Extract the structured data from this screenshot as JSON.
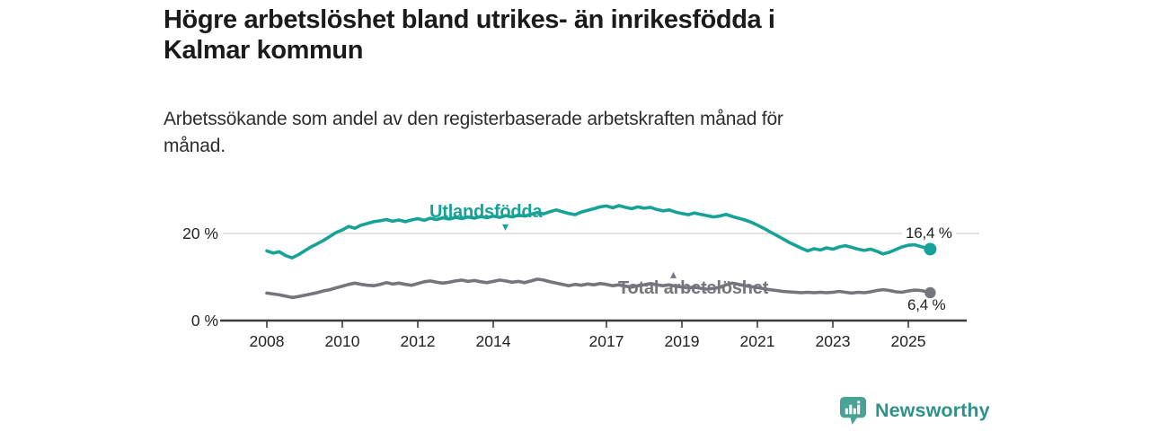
{
  "header": {
    "title": "Högre arbetslöshet bland utrikes- än inrikesfödda i Kalmar kommun",
    "title_line1": "Högre arbetslöshet bland utrikes- än inrikesfödda i",
    "title_line2": "Kalmar kommun",
    "subtitle": "Arbetssökande som andel av den registerbaserade arbetskraften månad för månad.",
    "subtitle_line1": "Arbetssökande som andel av den registerbaserade arbetskraften månad för",
    "subtitle_line2": "månad."
  },
  "colors": {
    "teal": "#17a298",
    "gray": "#75757d",
    "axis": "#3b3b3b",
    "grid": "#dadada",
    "tick_text": "#222222",
    "logo_bubble": "#4aa295",
    "logo_bars": "#ffffff",
    "logo_text": "#2f9289"
  },
  "chart_data": {
    "type": "line",
    "title": "Högre arbetslöshet bland utrikes- än inrikesfödda i Kalmar kommun",
    "subtitle": "Arbetssökande som andel av den registerbaserade arbetskraften månad för månad.",
    "unit": "%",
    "xlim": [
      2006.8,
      2026.5
    ],
    "ylim": [
      0,
      30
    ],
    "grid": "y-20-only",
    "legend_position": "inline-labels",
    "x_ticks": [
      {
        "year": 2008,
        "label": "2008"
      },
      {
        "year": 2010,
        "label": "2010"
      },
      {
        "year": 2012,
        "label": "2012"
      },
      {
        "year": 2014,
        "label": "2014"
      },
      {
        "year": 2017,
        "label": "2017"
      },
      {
        "year": 2019,
        "label": "2019"
      },
      {
        "year": 2021,
        "label": "2021"
      },
      {
        "year": 2023,
        "label": "2023"
      },
      {
        "year": 2025,
        "label": "2025"
      }
    ],
    "y_ticks": [
      {
        "value": 20,
        "label": "20 %"
      },
      {
        "value": 0,
        "label": "0 %"
      }
    ],
    "series": [
      {
        "name": "Utlandsfödda",
        "color": "#17a298",
        "end_label": "16,4 %",
        "end_value": 16.4,
        "points": [
          [
            2008.0,
            16.0
          ],
          [
            2008.17,
            15.5
          ],
          [
            2008.33,
            15.8
          ],
          [
            2008.5,
            14.9
          ],
          [
            2008.67,
            14.4
          ],
          [
            2008.83,
            15.1
          ],
          [
            2009.0,
            16.0
          ],
          [
            2009.17,
            16.9
          ],
          [
            2009.33,
            17.6
          ],
          [
            2009.5,
            18.4
          ],
          [
            2009.67,
            19.3
          ],
          [
            2009.83,
            20.2
          ],
          [
            2010.0,
            20.8
          ],
          [
            2010.17,
            21.6
          ],
          [
            2010.33,
            21.2
          ],
          [
            2010.5,
            21.9
          ],
          [
            2010.67,
            22.3
          ],
          [
            2010.83,
            22.7
          ],
          [
            2011.0,
            22.9
          ],
          [
            2011.17,
            23.2
          ],
          [
            2011.33,
            22.8
          ],
          [
            2011.5,
            23.1
          ],
          [
            2011.67,
            22.7
          ],
          [
            2011.83,
            23.1
          ],
          [
            2012.0,
            23.4
          ],
          [
            2012.17,
            23.0
          ],
          [
            2012.33,
            23.5
          ],
          [
            2012.5,
            23.2
          ],
          [
            2012.67,
            23.6
          ],
          [
            2012.83,
            23.3
          ],
          [
            2013.0,
            23.7
          ],
          [
            2013.17,
            23.4
          ],
          [
            2013.33,
            23.8
          ],
          [
            2013.5,
            23.5
          ],
          [
            2013.67,
            23.9
          ],
          [
            2013.83,
            23.6
          ],
          [
            2014.0,
            24.0
          ],
          [
            2014.17,
            23.7
          ],
          [
            2014.33,
            24.1
          ],
          [
            2014.5,
            23.8
          ],
          [
            2014.67,
            24.2
          ],
          [
            2014.83,
            24.0
          ],
          [
            2015.0,
            24.4
          ],
          [
            2015.17,
            24.8
          ],
          [
            2015.33,
            24.5
          ],
          [
            2015.5,
            25.0
          ],
          [
            2015.67,
            25.4
          ],
          [
            2015.83,
            25.0
          ],
          [
            2016.0,
            24.6
          ],
          [
            2016.17,
            24.3
          ],
          [
            2016.33,
            24.9
          ],
          [
            2016.5,
            25.3
          ],
          [
            2016.67,
            25.7
          ],
          [
            2016.83,
            26.1
          ],
          [
            2017.0,
            26.3
          ],
          [
            2017.17,
            25.9
          ],
          [
            2017.33,
            26.4
          ],
          [
            2017.5,
            26.0
          ],
          [
            2017.67,
            25.7
          ],
          [
            2017.83,
            26.1
          ],
          [
            2018.0,
            25.8
          ],
          [
            2018.17,
            26.0
          ],
          [
            2018.33,
            25.5
          ],
          [
            2018.5,
            25.2
          ],
          [
            2018.67,
            25.4
          ],
          [
            2018.83,
            24.9
          ],
          [
            2019.0,
            24.6
          ],
          [
            2019.17,
            24.3
          ],
          [
            2019.33,
            24.7
          ],
          [
            2019.5,
            24.4
          ],
          [
            2019.67,
            24.1
          ],
          [
            2019.83,
            23.8
          ],
          [
            2020.0,
            24.0
          ],
          [
            2020.17,
            24.4
          ],
          [
            2020.33,
            23.9
          ],
          [
            2020.5,
            23.5
          ],
          [
            2020.67,
            23.1
          ],
          [
            2020.83,
            22.6
          ],
          [
            2021.0,
            21.9
          ],
          [
            2021.17,
            21.2
          ],
          [
            2021.33,
            20.4
          ],
          [
            2021.5,
            19.6
          ],
          [
            2021.67,
            18.8
          ],
          [
            2021.83,
            18.0
          ],
          [
            2022.0,
            17.3
          ],
          [
            2022.17,
            16.6
          ],
          [
            2022.33,
            16.0
          ],
          [
            2022.5,
            16.5
          ],
          [
            2022.67,
            16.2
          ],
          [
            2022.83,
            16.7
          ],
          [
            2023.0,
            16.4
          ],
          [
            2023.17,
            16.9
          ],
          [
            2023.33,
            17.2
          ],
          [
            2023.5,
            16.8
          ],
          [
            2023.67,
            16.4
          ],
          [
            2023.83,
            16.1
          ],
          [
            2024.0,
            16.4
          ],
          [
            2024.17,
            15.9
          ],
          [
            2024.33,
            15.3
          ],
          [
            2024.5,
            15.7
          ],
          [
            2024.67,
            16.3
          ],
          [
            2024.83,
            16.9
          ],
          [
            2025.0,
            17.3
          ],
          [
            2025.17,
            17.4
          ],
          [
            2025.33,
            17.0
          ],
          [
            2025.5,
            16.6
          ],
          [
            2025.58,
            16.4
          ]
        ]
      },
      {
        "name": "Total arbetslöshet",
        "color": "#75757d",
        "end_label": "6,4 %",
        "end_value": 6.4,
        "points": [
          [
            2008.0,
            6.3
          ],
          [
            2008.17,
            6.1
          ],
          [
            2008.33,
            5.9
          ],
          [
            2008.5,
            5.6
          ],
          [
            2008.67,
            5.3
          ],
          [
            2008.83,
            5.5
          ],
          [
            2009.0,
            5.8
          ],
          [
            2009.17,
            6.1
          ],
          [
            2009.33,
            6.4
          ],
          [
            2009.5,
            6.8
          ],
          [
            2009.67,
            7.1
          ],
          [
            2009.83,
            7.5
          ],
          [
            2010.0,
            7.9
          ],
          [
            2010.17,
            8.3
          ],
          [
            2010.33,
            8.6
          ],
          [
            2010.5,
            8.3
          ],
          [
            2010.67,
            8.1
          ],
          [
            2010.83,
            8.0
          ],
          [
            2011.0,
            8.3
          ],
          [
            2011.17,
            8.7
          ],
          [
            2011.33,
            8.4
          ],
          [
            2011.5,
            8.6
          ],
          [
            2011.67,
            8.3
          ],
          [
            2011.83,
            8.1
          ],
          [
            2012.0,
            8.5
          ],
          [
            2012.17,
            8.9
          ],
          [
            2012.33,
            9.1
          ],
          [
            2012.5,
            8.8
          ],
          [
            2012.67,
            8.6
          ],
          [
            2012.83,
            8.8
          ],
          [
            2013.0,
            9.1
          ],
          [
            2013.17,
            9.3
          ],
          [
            2013.33,
            9.0
          ],
          [
            2013.5,
            9.2
          ],
          [
            2013.67,
            8.9
          ],
          [
            2013.83,
            8.7
          ],
          [
            2014.0,
            9.0
          ],
          [
            2014.17,
            9.3
          ],
          [
            2014.33,
            9.1
          ],
          [
            2014.5,
            8.8
          ],
          [
            2014.67,
            9.0
          ],
          [
            2014.83,
            8.7
          ],
          [
            2015.0,
            9.1
          ],
          [
            2015.17,
            9.5
          ],
          [
            2015.33,
            9.3
          ],
          [
            2015.5,
            8.9
          ],
          [
            2015.67,
            8.6
          ],
          [
            2015.83,
            8.3
          ],
          [
            2016.0,
            8.0
          ],
          [
            2016.17,
            8.3
          ],
          [
            2016.33,
            8.1
          ],
          [
            2016.5,
            8.4
          ],
          [
            2016.67,
            8.2
          ],
          [
            2016.83,
            8.5
          ],
          [
            2017.0,
            8.3
          ],
          [
            2017.17,
            8.0
          ],
          [
            2017.33,
            8.2
          ],
          [
            2017.5,
            7.9
          ],
          [
            2017.67,
            7.7
          ],
          [
            2017.83,
            8.0
          ],
          [
            2018.0,
            8.2
          ],
          [
            2018.17,
            8.5
          ],
          [
            2018.33,
            8.2
          ],
          [
            2018.5,
            8.0
          ],
          [
            2018.67,
            8.2
          ],
          [
            2018.83,
            7.9
          ],
          [
            2019.0,
            7.7
          ],
          [
            2019.17,
            7.5
          ],
          [
            2019.33,
            7.7
          ],
          [
            2019.5,
            7.4
          ],
          [
            2019.67,
            7.2
          ],
          [
            2019.83,
            7.4
          ],
          [
            2020.0,
            7.6
          ],
          [
            2020.17,
            8.2
          ],
          [
            2020.33,
            8.6
          ],
          [
            2020.5,
            8.3
          ],
          [
            2020.67,
            8.0
          ],
          [
            2020.83,
            7.8
          ],
          [
            2021.0,
            7.6
          ],
          [
            2021.17,
            7.3
          ],
          [
            2021.33,
            7.1
          ],
          [
            2021.5,
            6.9
          ],
          [
            2021.67,
            6.7
          ],
          [
            2021.83,
            6.6
          ],
          [
            2022.0,
            6.5
          ],
          [
            2022.17,
            6.4
          ],
          [
            2022.33,
            6.5
          ],
          [
            2022.5,
            6.4
          ],
          [
            2022.67,
            6.5
          ],
          [
            2022.83,
            6.4
          ],
          [
            2023.0,
            6.5
          ],
          [
            2023.17,
            6.7
          ],
          [
            2023.33,
            6.5
          ],
          [
            2023.5,
            6.3
          ],
          [
            2023.67,
            6.5
          ],
          [
            2023.83,
            6.4
          ],
          [
            2024.0,
            6.6
          ],
          [
            2024.17,
            6.9
          ],
          [
            2024.33,
            7.1
          ],
          [
            2024.5,
            6.9
          ],
          [
            2024.67,
            6.6
          ],
          [
            2024.83,
            6.5
          ],
          [
            2025.0,
            6.8
          ],
          [
            2025.17,
            7.0
          ],
          [
            2025.33,
            6.9
          ],
          [
            2025.5,
            6.6
          ],
          [
            2025.58,
            6.4
          ]
        ]
      }
    ]
  },
  "footer": {
    "brand": "Newsworthy"
  }
}
